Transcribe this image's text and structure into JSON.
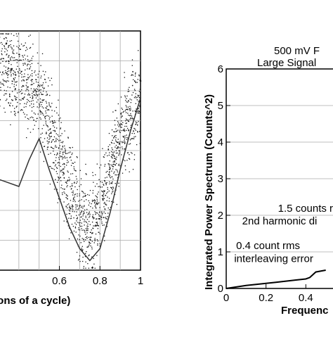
{
  "chart_data": [
    {
      "type": "scatter",
      "title": "",
      "xlabel": "ions of a cycle)",
      "ylabel": "",
      "xlim": [
        0.3,
        1.0
      ],
      "ylim": [
        0,
        1
      ],
      "x_ticks": [
        0.6,
        0.8,
        1.0
      ],
      "x_tick_labels": [
        "0.6",
        "0.8",
        "1"
      ],
      "grid": true,
      "scatter_series": {
        "description_of_shape": "dense noisy dots forming a V with minimum near x=0.75",
        "center_curve": [
          [
            0.3,
            0.86
          ],
          [
            0.4,
            0.83
          ],
          [
            0.5,
            0.71
          ],
          [
            0.6,
            0.47
          ],
          [
            0.7,
            0.22
          ],
          [
            0.75,
            0.18
          ],
          [
            0.8,
            0.26
          ],
          [
            0.9,
            0.56
          ],
          [
            1.0,
            0.74
          ]
        ]
      },
      "line_series": {
        "points": [
          [
            0.3,
            0.38
          ],
          [
            0.4,
            0.35
          ],
          [
            0.45,
            0.46
          ],
          [
            0.5,
            0.55
          ],
          [
            0.55,
            0.42
          ],
          [
            0.6,
            0.3
          ],
          [
            0.65,
            0.18
          ],
          [
            0.7,
            0.09
          ],
          [
            0.75,
            0.04
          ],
          [
            0.8,
            0.09
          ],
          [
            0.85,
            0.24
          ],
          [
            0.9,
            0.42
          ],
          [
            0.95,
            0.58
          ],
          [
            1.0,
            0.72
          ]
        ]
      }
    },
    {
      "type": "line",
      "title": "500 mV F",
      "subtitle": "Large Signal",
      "xlabel": "Frequenc",
      "ylabel": "Integrated Power Spectrum (Counts^2)",
      "xlim": [
        0,
        0.6
      ],
      "ylim": [
        0,
        6
      ],
      "x_ticks": [
        0,
        0.2,
        0.4
      ],
      "x_tick_labels": [
        "0",
        "0.2",
        "0.4"
      ],
      "y_ticks": [
        0,
        1,
        2,
        3,
        4,
        5,
        6
      ],
      "y_tick_labels": [
        "0",
        "1",
        "2",
        "3",
        "4",
        "5",
        "6"
      ],
      "grid": true,
      "series": [
        {
          "x": [
            0,
            0.05,
            0.1,
            0.15,
            0.2,
            0.25,
            0.3,
            0.35,
            0.4,
            0.42,
            0.45,
            0.5
          ],
          "y": [
            0,
            0.04,
            0.08,
            0.11,
            0.14,
            0.17,
            0.2,
            0.23,
            0.26,
            0.3,
            0.45,
            0.5
          ]
        }
      ],
      "annotations": [
        {
          "text": "1.5 counts r",
          "x": 0.26,
          "y": 2.1
        },
        {
          "text": "2nd harmonic di",
          "x": 0.08,
          "y": 1.75
        },
        {
          "text": "0.4 count rms",
          "x": 0.05,
          "y": 1.08
        },
        {
          "text": "interleaving error",
          "x": 0.04,
          "y": 0.72
        }
      ]
    }
  ]
}
